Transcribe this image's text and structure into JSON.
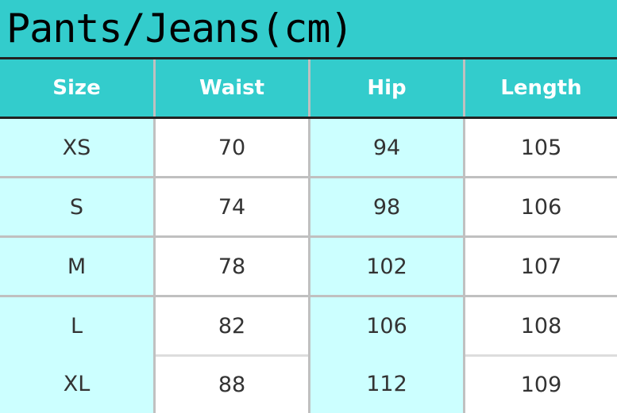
{
  "title": "Pants/Jeans(cm)",
  "columns": [
    "Size",
    "Waist",
    "Hip",
    "Length"
  ],
  "rows": [
    [
      "XS",
      "70",
      "94",
      "105"
    ],
    [
      "S",
      "74",
      "98",
      "106"
    ],
    [
      "M",
      "78",
      "102",
      "107"
    ],
    [
      "L",
      "82",
      "106",
      "108"
    ],
    [
      "XL",
      "88",
      "112",
      "109"
    ]
  ],
  "colors": {
    "header": "#33cccc",
    "alt_column": "#ccffff",
    "cell": "#ffffff"
  }
}
